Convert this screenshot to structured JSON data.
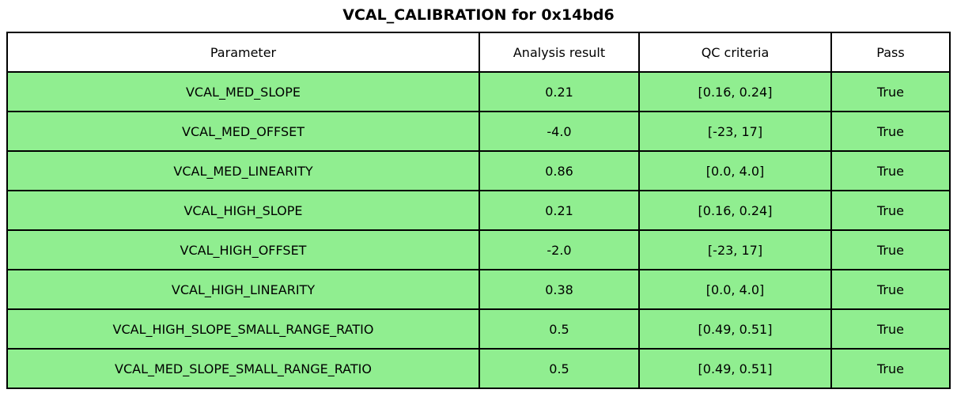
{
  "chart_data": {
    "type": "table",
    "title": "VCAL_CALIBRATION for 0x14bd6",
    "columns": [
      "Parameter",
      "Analysis result",
      "QC criteria",
      "Pass"
    ],
    "rows": [
      [
        "VCAL_MED_SLOPE",
        "0.21",
        "[0.16, 0.24]",
        "True"
      ],
      [
        "VCAL_MED_OFFSET",
        "-4.0",
        "[-23, 17]",
        "True"
      ],
      [
        "VCAL_MED_LINEARITY",
        "0.86",
        "[0.0, 4.0]",
        "True"
      ],
      [
        "VCAL_HIGH_SLOPE",
        "0.21",
        "[0.16, 0.24]",
        "True"
      ],
      [
        "VCAL_HIGH_OFFSET",
        "-2.0",
        "[-23, 17]",
        "True"
      ],
      [
        "VCAL_HIGH_LINEARITY",
        "0.38",
        "[0.0, 4.0]",
        "True"
      ],
      [
        "VCAL_HIGH_SLOPE_SMALL_RANGE_RATIO",
        "0.5",
        "[0.49, 0.51]",
        "True"
      ],
      [
        "VCAL_MED_SLOPE_SMALL_RANGE_RATIO",
        "0.5",
        "[0.49, 0.51]",
        "True"
      ]
    ],
    "layout_hints": {
      "header_row": true,
      "all_rows_pass": true
    }
  },
  "colors": {
    "pass_row_bg": "#90ee90",
    "header_bg": "#ffffff",
    "border": "#000000",
    "text": "#000000"
  }
}
